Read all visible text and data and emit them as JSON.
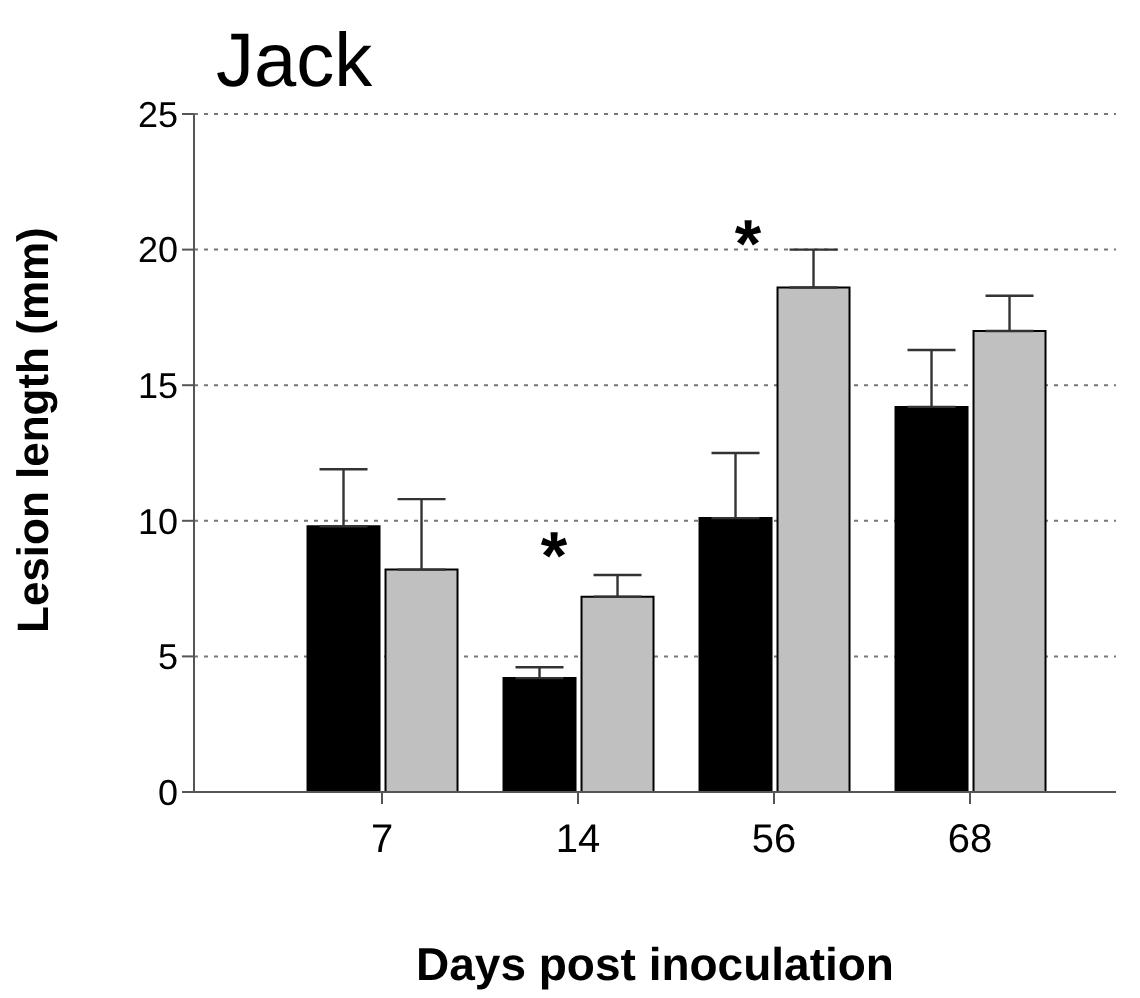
{
  "chart_data": {
    "type": "bar",
    "title": "Jack",
    "xlabel": "Days post inoculation",
    "ylabel": "Lesion length (mm)",
    "categories": [
      "7",
      "14",
      "56",
      "68"
    ],
    "series": [
      {
        "color": "#000000",
        "values": [
          9.8,
          4.2,
          10.1,
          14.2
        ],
        "errors": [
          [
            9.8,
            11.9
          ],
          [
            4.2,
            4.6
          ],
          [
            10.1,
            12.5
          ],
          [
            14.2,
            16.3
          ]
        ]
      },
      {
        "color": "#c0c0c0",
        "values": [
          8.2,
          7.2,
          18.6,
          17.0
        ],
        "errors": [
          [
            8.2,
            10.8
          ],
          [
            7.2,
            8.0
          ],
          [
            18.6,
            20.0
          ],
          [
            17.0,
            18.3
          ]
        ]
      }
    ],
    "ylim": [
      0,
      25
    ],
    "yticks": [
      0,
      5,
      10,
      15,
      20,
      25
    ],
    "grid": "y",
    "legend": false,
    "annotations": [
      "*",
      "*"
    ]
  }
}
